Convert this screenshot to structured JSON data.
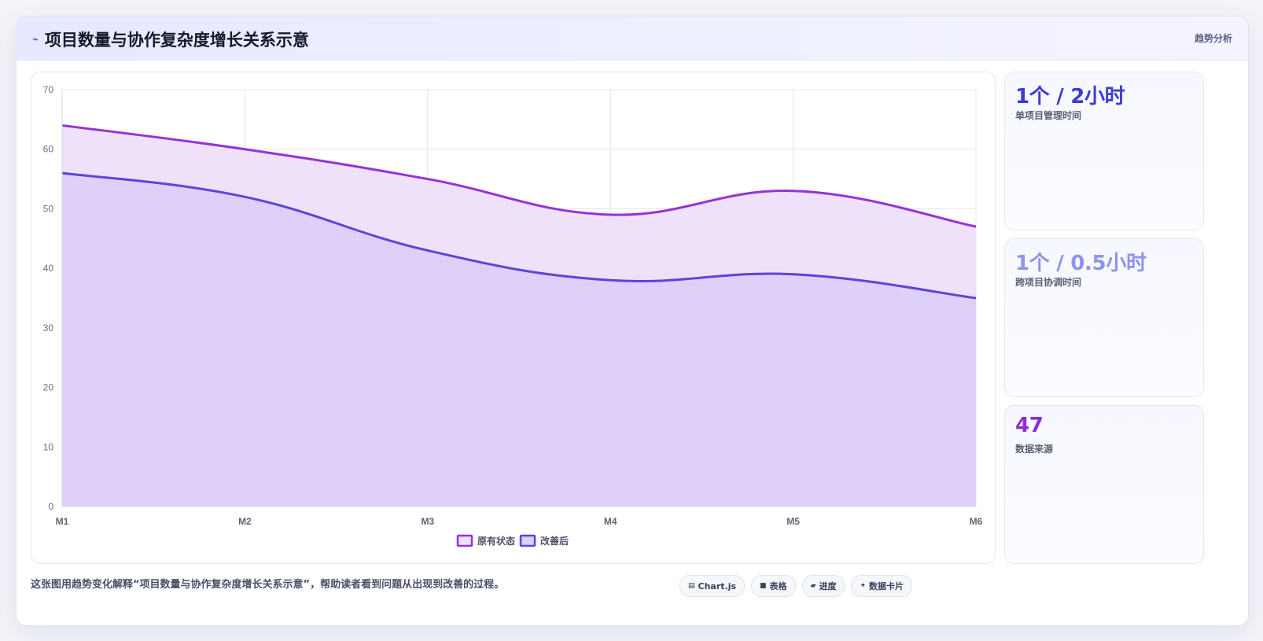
{
  "header": {
    "icon": "trend-icon",
    "title": "项目数量与协作复杂度增长关系示意",
    "tag": "趋势分析"
  },
  "chart_data": {
    "type": "area",
    "categories": [
      "M1",
      "M2",
      "M3",
      "M4",
      "M5",
      "M6"
    ],
    "series": [
      {
        "name": "原有状态",
        "values": [
          64,
          60,
          55,
          49,
          53,
          47
        ],
        "color": "#9334d6",
        "fill": "#eedffa"
      },
      {
        "name": "改善后",
        "values": [
          56,
          52,
          43,
          38,
          39,
          35
        ],
        "color": "#5b45d9",
        "fill": "#dccff8"
      }
    ],
    "ylim": [
      0,
      70
    ],
    "yticks": [
      0,
      10,
      20,
      30,
      40,
      50,
      60,
      70
    ],
    "grid": true,
    "legend": "bottom"
  },
  "kpis": [
    {
      "value": "1个 / 2小时",
      "label": "单项目管理时间",
      "color": "#3d3bd6"
    },
    {
      "value": "1个 / 0.5小时",
      "label": "跨项目协调时间",
      "color": "#8c94ee"
    },
    {
      "value": "47",
      "label": "数据来源",
      "color": "#8a2fd8"
    }
  ],
  "footer": {
    "caption": "这张图用趋势变化解释“项目数量与协作复杂度增长关系示意”，帮助读者看到问题从出现到改善的过程。",
    "chips": [
      {
        "icon": "chart-icon",
        "glyph": "▤",
        "label": "Chart.js"
      },
      {
        "icon": "table-icon",
        "glyph": "■",
        "label": "表格"
      },
      {
        "icon": "progress-icon",
        "glyph": "▰",
        "label": "进度"
      },
      {
        "icon": "card-icon",
        "glyph": "✦",
        "label": "数据卡片"
      }
    ]
  }
}
